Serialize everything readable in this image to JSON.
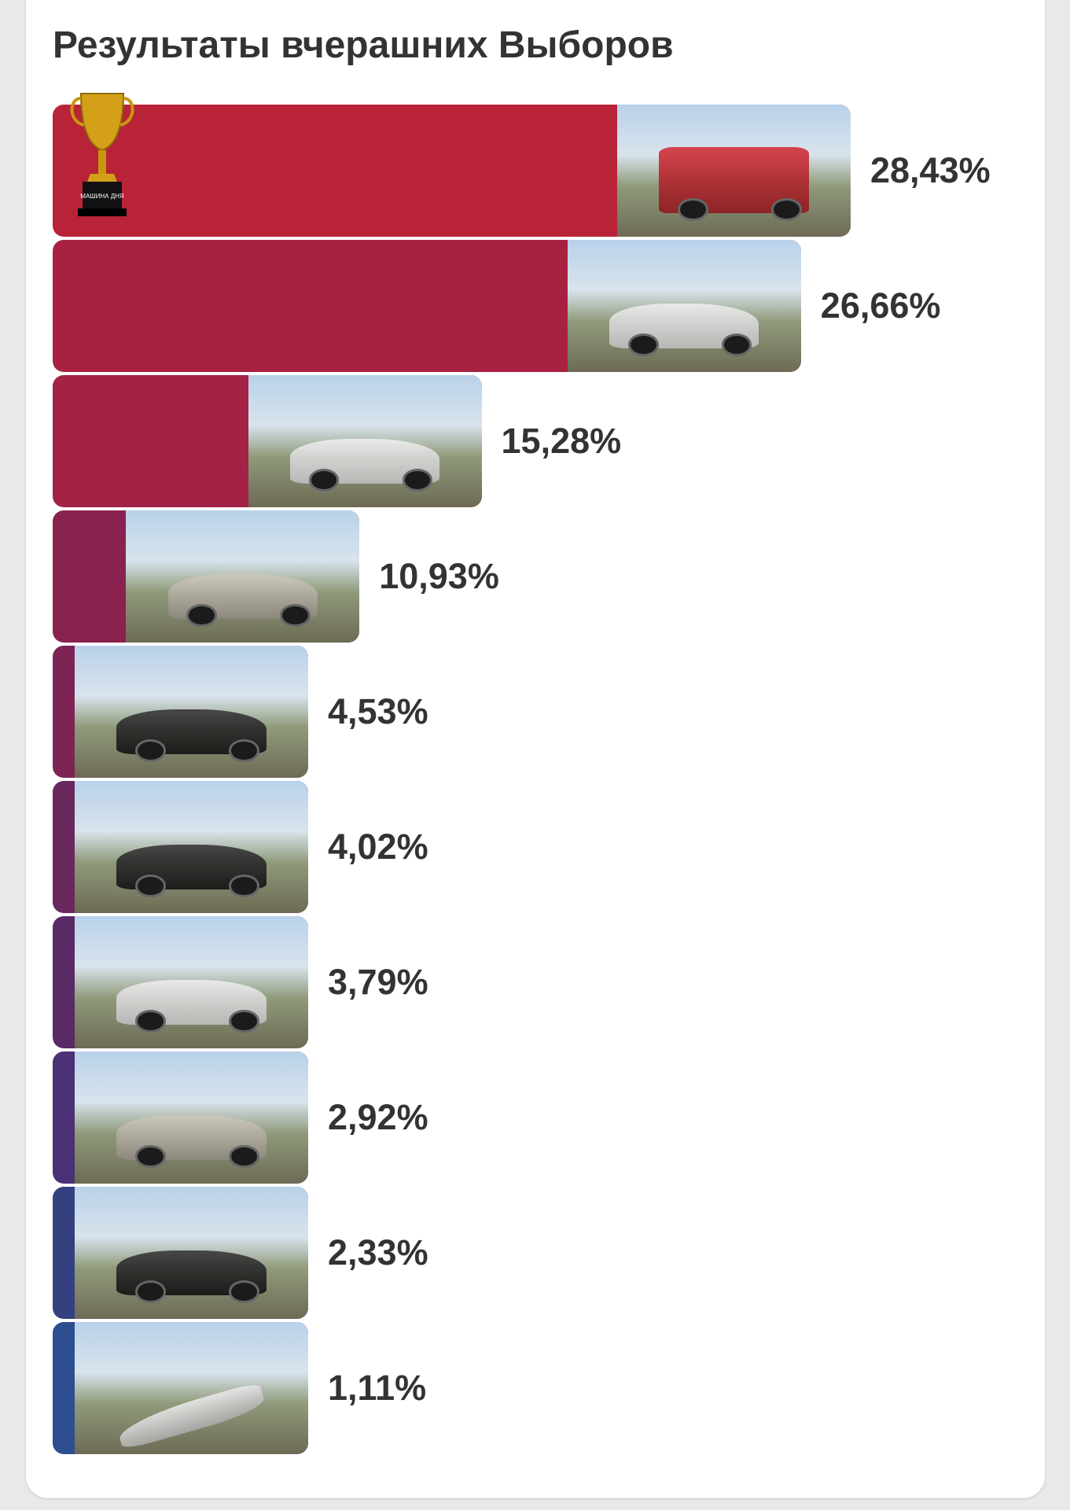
{
  "title": "Результаты вчерашних Выборов",
  "chart_data": {
    "type": "bar",
    "orientation": "horizontal",
    "title": "Результаты вчерашних Выборов",
    "categories": [],
    "values": [
      28.43,
      26.66,
      15.28,
      10.93,
      4.53,
      4.02,
      3.79,
      2.92,
      2.33,
      1.11
    ],
    "labels": [
      "28,43%",
      "26,66%",
      "15,28%",
      "10,93%",
      "4,53%",
      "4,02%",
      "3,79%",
      "2,92%",
      "2,33%",
      "1,11%"
    ],
    "colors": [
      "#b92338",
      "#a92141",
      "#a32245",
      "#8a2250",
      "#7d2455",
      "#69285e",
      "#5a2a66",
      "#4b3176",
      "#34407f",
      "#2d4e90"
    ],
    "photos": [
      "bus",
      "jeep",
      "sedan-white",
      "hatch-silver",
      "sedan-black",
      "suv-black",
      "sedan-white",
      "sedan-silver",
      "wagon-dark",
      "jet"
    ],
    "xlim": [
      0,
      28.43
    ],
    "grid": false,
    "legend": "none",
    "winner_badge": "МАШИНА ДНЯ"
  }
}
